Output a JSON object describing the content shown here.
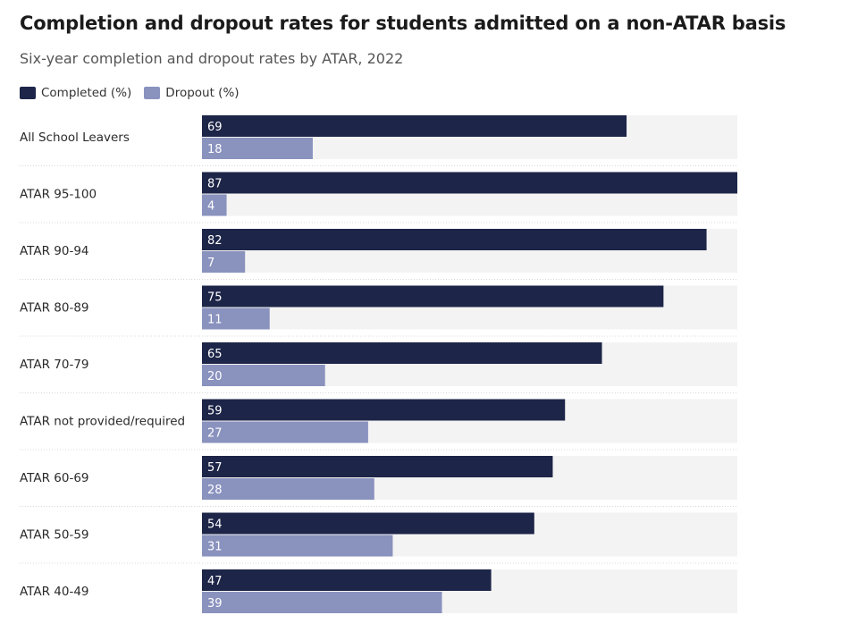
{
  "chart_data": {
    "type": "bar",
    "orientation": "horizontal",
    "title": "Completion and dropout rates for students admitted on a non-ATAR basis",
    "subtitle": "Six-year completion and dropout rates by ATAR, 2022",
    "categories": [
      "All School Leavers",
      "ATAR 95-100",
      "ATAR 90-94",
      "ATAR 80-89",
      "ATAR 70-79",
      "ATAR not provided/required",
      "ATAR 60-69",
      "ATAR 50-59",
      "ATAR 40-49"
    ],
    "series": [
      {
        "name": "Completed (%)",
        "values": [
          69,
          87,
          82,
          75,
          65,
          59,
          57,
          54,
          47
        ],
        "color": "#1d2548"
      },
      {
        "name": "Dropout (%)",
        "values": [
          18,
          4,
          7,
          11,
          20,
          27,
          28,
          31,
          39
        ],
        "color": "#8a92be"
      }
    ],
    "xlim": [
      0,
      87
    ],
    "legend_position": "top-left",
    "track_color": "#f3f3f3",
    "grid": false
  }
}
